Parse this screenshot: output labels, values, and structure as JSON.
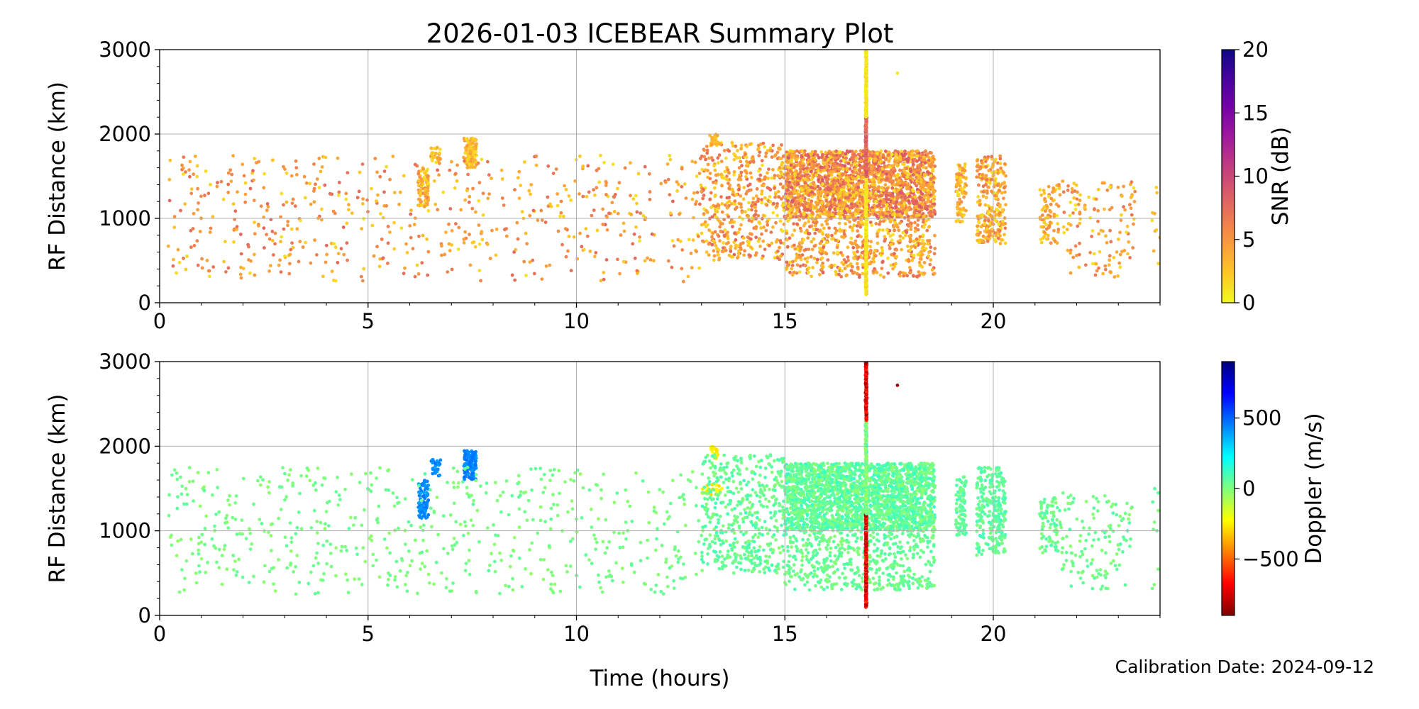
{
  "title": "2026-01-03 ICEBEAR Summary Plot",
  "xlabel": "Time (hours)",
  "footer": "Calibration Date: 2024-09-12",
  "colors": {
    "grid": "#b0b0b0",
    "axis": "#000000"
  },
  "chart_data": [
    {
      "type": "scatter",
      "panel": "snr",
      "ylabel": "RF Distance (km)",
      "xlim": [
        0,
        24
      ],
      "ylim": [
        0,
        3000
      ],
      "xticks": [
        0,
        5,
        10,
        15,
        20
      ],
      "yticks": [
        0,
        1000,
        2000,
        3000
      ],
      "grid": true,
      "colorbar": {
        "label": "SNR (dB)",
        "range": [
          0,
          20
        ],
        "ticks": [
          0,
          5,
          10,
          15,
          20
        ],
        "colormap": "plasma_r",
        "stops": [
          "#f0f921",
          "#fdca26",
          "#fb9f3a",
          "#ed7953",
          "#d8576b",
          "#bd3786",
          "#9c179e",
          "#7201a8",
          "#46039f",
          "#0d0887"
        ]
      },
      "clusters": [
        {
          "x": [
            6.2,
            6.45
          ],
          "y": [
            1150,
            1600
          ],
          "n": 90,
          "c": [
            1,
            6
          ]
        },
        {
          "x": [
            6.5,
            6.75
          ],
          "y": [
            1650,
            1850
          ],
          "n": 30,
          "c": [
            1,
            6
          ]
        },
        {
          "x": [
            7.3,
            7.6
          ],
          "y": [
            1600,
            1950
          ],
          "n": 110,
          "c": [
            1,
            5
          ]
        },
        {
          "x": [
            13.2,
            13.4
          ],
          "y": [
            1850,
            2000
          ],
          "n": 20,
          "c": [
            1,
            4
          ]
        },
        {
          "x": [
            13.0,
            15.0
          ],
          "y": [
            500,
            1900
          ],
          "n": 500,
          "c": [
            1,
            8
          ]
        },
        {
          "x": [
            15.0,
            18.6
          ],
          "y": [
            1000,
            1800
          ],
          "n": 2200,
          "c": [
            1,
            9
          ]
        },
        {
          "x": [
            15.0,
            18.6
          ],
          "y": [
            300,
            1000
          ],
          "n": 500,
          "c": [
            1,
            8
          ]
        },
        {
          "x": [
            19.1,
            19.35
          ],
          "y": [
            950,
            1650
          ],
          "n": 90,
          "c": [
            1,
            6
          ]
        },
        {
          "x": [
            19.6,
            20.3
          ],
          "y": [
            700,
            1750
          ],
          "n": 260,
          "c": [
            1,
            7
          ]
        },
        {
          "x": [
            21.1,
            21.6
          ],
          "y": [
            700,
            1400
          ],
          "n": 80,
          "c": [
            1,
            6
          ]
        },
        {
          "x": [
            21.6,
            23.4
          ],
          "y": [
            300,
            1450
          ],
          "n": 130,
          "c": [
            1,
            7
          ]
        },
        {
          "x": [
            0.2,
            13.0
          ],
          "y": [
            250,
            1750
          ],
          "n": 600,
          "c": [
            1,
            8
          ]
        },
        {
          "x": [
            23.8,
            24
          ],
          "y": [
            250,
            1500
          ],
          "n": 10,
          "c": [
            1,
            4
          ]
        }
      ],
      "column": {
        "x": 16.95,
        "y": [
          100,
          3000
        ],
        "c": [
          0,
          2
        ],
        "hot": {
          "y": [
            1500,
            2200
          ],
          "c": [
            6,
            10
          ]
        }
      },
      "outliers": [
        {
          "x": 17.7,
          "y": 2720,
          "c": 1
        }
      ]
    },
    {
      "type": "scatter",
      "panel": "doppler",
      "ylabel": "RF Distance (km)",
      "xlim": [
        0,
        24
      ],
      "ylim": [
        0,
        3000
      ],
      "xticks": [
        0,
        5,
        10,
        15,
        20
      ],
      "yticks": [
        0,
        1000,
        2000,
        3000
      ],
      "grid": true,
      "colorbar": {
        "label": "Doppler (m/s)",
        "range": [
          -900,
          900
        ],
        "ticks": [
          -500,
          0,
          500
        ],
        "tick_labels": [
          "−500",
          "0",
          "500"
        ],
        "colormap": "jet_r",
        "stops": [
          "#7f0000",
          "#ff0000",
          "#ff7f00",
          "#ffff00",
          "#7fff7f",
          "#00ffff",
          "#007fff",
          "#0000ff",
          "#00007f"
        ]
      },
      "clusters": [
        {
          "x": [
            6.2,
            6.45
          ],
          "y": [
            1150,
            1600
          ],
          "n": 90,
          "c": [
            380,
            470
          ]
        },
        {
          "x": [
            6.5,
            6.75
          ],
          "y": [
            1650,
            1850
          ],
          "n": 30,
          "c": [
            380,
            470
          ]
        },
        {
          "x": [
            7.3,
            7.6
          ],
          "y": [
            1600,
            1950
          ],
          "n": 110,
          "c": [
            400,
            480
          ]
        },
        {
          "x": [
            13.2,
            13.4
          ],
          "y": [
            1850,
            2000
          ],
          "n": 20,
          "c": [
            -300,
            -220
          ]
        },
        {
          "x": [
            13.0,
            13.5
          ],
          "y": [
            1400,
            1550
          ],
          "n": 25,
          "c": [
            -320,
            -150
          ]
        },
        {
          "x": [
            13.0,
            15.0
          ],
          "y": [
            500,
            1900
          ],
          "n": 480,
          "c": [
            -20,
            110
          ]
        },
        {
          "x": [
            15.0,
            18.6
          ],
          "y": [
            1000,
            1800
          ],
          "n": 2200,
          "c": [
            -30,
            130
          ]
        },
        {
          "x": [
            15.0,
            18.6
          ],
          "y": [
            300,
            1000
          ],
          "n": 500,
          "c": [
            -20,
            90
          ]
        },
        {
          "x": [
            19.1,
            19.35
          ],
          "y": [
            950,
            1650
          ],
          "n": 90,
          "c": [
            0,
            110
          ]
        },
        {
          "x": [
            19.6,
            20.3
          ],
          "y": [
            700,
            1750
          ],
          "n": 260,
          "c": [
            0,
            110
          ]
        },
        {
          "x": [
            21.1,
            21.6
          ],
          "y": [
            700,
            1400
          ],
          "n": 80,
          "c": [
            -20,
            90
          ]
        },
        {
          "x": [
            21.6,
            23.4
          ],
          "y": [
            300,
            1450
          ],
          "n": 130,
          "c": [
            -30,
            80
          ]
        },
        {
          "x": [
            0.2,
            13.0
          ],
          "y": [
            250,
            1750
          ],
          "n": 600,
          "c": [
            -40,
            60
          ]
        },
        {
          "x": [
            23.8,
            24
          ],
          "y": [
            250,
            1500
          ],
          "n": 10,
          "c": [
            -20,
            60
          ]
        }
      ],
      "column": {
        "x": 16.95,
        "y": [
          100,
          3000
        ],
        "c": [
          -900,
          -550
        ],
        "hot": {
          "y": [
            1200,
            2300
          ],
          "c": [
            -100,
            100
          ]
        }
      },
      "outliers": [
        {
          "x": 17.7,
          "y": 2720,
          "c": -850
        }
      ]
    }
  ]
}
